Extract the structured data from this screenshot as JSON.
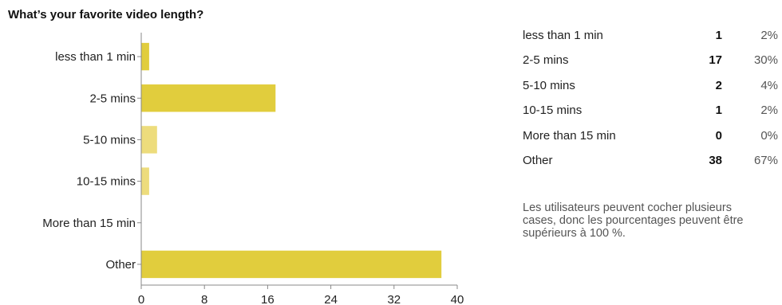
{
  "title": "What’s your favorite video length?",
  "chart_data": {
    "type": "bar",
    "orientation": "horizontal",
    "title": "What’s your favorite video length?",
    "categories": [
      "less than 1 min",
      "2-5 mins",
      "5-10 mins",
      "10-15 mins",
      "More than 15 min",
      "Other"
    ],
    "values": [
      1,
      17,
      2,
      1,
      0,
      38
    ],
    "xlim": [
      0,
      40
    ],
    "xticks": [
      0,
      8,
      16,
      24,
      32,
      40
    ],
    "xlabel": "",
    "ylabel": "",
    "bar_colors": [
      "#e1cd3d",
      "#e1cd3d",
      "#eddc7c",
      "#eddc7c",
      "#e1cd3d",
      "#e1cd3d"
    ],
    "grid": false
  },
  "summary": [
    {
      "label": "less than 1 min",
      "count": "1",
      "percent": "2%"
    },
    {
      "label": "2-5 mins",
      "count": "17",
      "percent": "30%"
    },
    {
      "label": "5-10 mins",
      "count": "2",
      "percent": "4%"
    },
    {
      "label": "10-15 mins",
      "count": "1",
      "percent": "2%"
    },
    {
      "label": "More than 15 min",
      "count": "0",
      "percent": "0%"
    },
    {
      "label": "Other",
      "count": "38",
      "percent": "67%"
    }
  ],
  "note": "Les utilisateurs peuvent cocher plusieurs cases, donc les pourcentages peuvent être supérieurs à 100 %."
}
